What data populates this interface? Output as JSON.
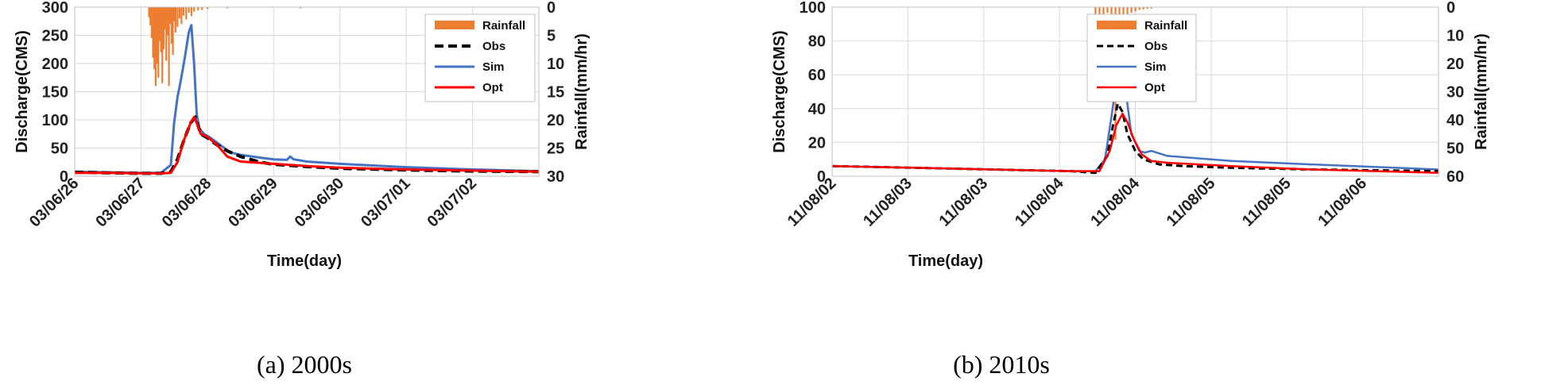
{
  "chart_data": [
    {
      "type": "line",
      "caption": "(a) 2000s",
      "xlabel": "Time(day)",
      "ylabel": "Discharge(CMS)",
      "y2label": "Rainfall(mm/hr)",
      "ylim": [
        0,
        300
      ],
      "yticks": [
        0,
        50,
        100,
        150,
        200,
        250,
        300
      ],
      "y2lim": [
        0,
        30
      ],
      "y2ticks": [
        0,
        5,
        10,
        15,
        20,
        25,
        30
      ],
      "y2_inverted": true,
      "xlim": [
        0,
        7
      ],
      "xtick_labels": [
        "03/06/26",
        "03/06/27",
        "03/06/28",
        "03/06/29",
        "03/06/30",
        "03/07/01",
        "03/07/02"
      ],
      "grid": true,
      "legend_position": "top-right",
      "colors": {
        "rainfall": "#ED7D31",
        "obs": "#000000",
        "sim": "#4472C4",
        "opt": "#FF0000"
      },
      "rainfall": {
        "name": "Rainfall",
        "x": [
          1.12,
          1.14,
          1.16,
          1.18,
          1.2,
          1.22,
          1.24,
          1.26,
          1.28,
          1.3,
          1.32,
          1.34,
          1.36,
          1.38,
          1.4,
          1.42,
          1.44,
          1.46,
          1.48,
          1.5,
          1.52,
          1.55,
          1.58,
          1.61,
          1.64,
          1.68,
          1.72,
          1.76,
          1.8,
          1.86,
          1.92,
          2.0,
          2.3,
          3.4
        ],
        "values": [
          1.8,
          3.2,
          5.5,
          9.0,
          11.0,
          14.0,
          10.0,
          12.5,
          6.0,
          8.0,
          13.5,
          7.5,
          4.0,
          9.5,
          5.0,
          14.0,
          3.0,
          6.5,
          8.5,
          2.5,
          4.5,
          3.5,
          2.0,
          3.0,
          1.5,
          2.2,
          1.0,
          1.6,
          0.8,
          0.6,
          0.5,
          0.3,
          0.2,
          0.2
        ]
      },
      "series": [
        {
          "name": "Obs",
          "style": "dashed",
          "x": [
            0,
            0.5,
            1.0,
            1.3,
            1.45,
            1.55,
            1.65,
            1.75,
            1.82,
            1.9,
            2.0,
            2.15,
            2.3,
            2.5,
            2.8,
            3.0,
            3.5,
            4.0,
            5.0,
            6.0,
            7.0
          ],
          "y": [
            7,
            6,
            5,
            5,
            8,
            30,
            65,
            95,
            105,
            75,
            68,
            55,
            45,
            35,
            25,
            21,
            17,
            14,
            11,
            9,
            8
          ]
        },
        {
          "name": "Sim",
          "style": "solid",
          "x": [
            0,
            0.5,
            1.0,
            1.3,
            1.45,
            1.5,
            1.55,
            1.6,
            1.66,
            1.72,
            1.76,
            1.8,
            1.84,
            1.88,
            1.95,
            2.05,
            2.2,
            2.35,
            2.5,
            2.8,
            3.0,
            3.2,
            3.25,
            3.3,
            3.5,
            4.0,
            5.0,
            6.0,
            7.0
          ],
          "y": [
            8,
            7,
            6,
            6,
            20,
            95,
            140,
            170,
            210,
            255,
            268,
            200,
            110,
            85,
            75,
            68,
            55,
            42,
            38,
            33,
            30,
            29,
            35,
            30,
            26,
            22,
            16,
            12,
            9
          ]
        },
        {
          "name": "Opt",
          "style": "solid",
          "x": [
            0,
            0.5,
            1.0,
            1.3,
            1.45,
            1.55,
            1.65,
            1.75,
            1.8,
            1.84,
            1.9,
            2.0,
            2.15,
            2.3,
            2.5,
            3.0,
            3.5,
            4.0,
            5.0,
            6.0,
            7.0
          ],
          "y": [
            6,
            6,
            5,
            5,
            6,
            25,
            65,
            95,
            105,
            95,
            75,
            70,
            55,
            35,
            26,
            22,
            18,
            15,
            12,
            10,
            8
          ]
        }
      ]
    },
    {
      "type": "line",
      "caption": "(b) 2010s",
      "xlabel": "Time(day)",
      "ylabel": "Discharge(CMS)",
      "y2label": "Rainfall(mm/hr)",
      "ylim": [
        0,
        100
      ],
      "yticks": [
        0,
        20,
        40,
        60,
        80,
        100
      ],
      "y2lim": [
        0,
        60
      ],
      "y2ticks": [
        0,
        10,
        20,
        30,
        40,
        50,
        60
      ],
      "y2_inverted": true,
      "xlim": [
        0,
        7.6
      ],
      "xtick_labels": [
        "11/08/02",
        "11/08/03",
        "11/08/03",
        "11/08/04",
        "11/08/04",
        "11/08/05",
        "11/08/05",
        "11/08/06"
      ],
      "grid": true,
      "legend_position": "top-right",
      "colors": {
        "rainfall": "#ED7D31",
        "obs": "#000000",
        "sim": "#4472C4",
        "opt": "#FF0000"
      },
      "rainfall": {
        "name": "Rainfall",
        "x": [
          3.3,
          3.35,
          3.4,
          3.45,
          3.5,
          3.55,
          3.6,
          3.65,
          3.7,
          3.75,
          3.8,
          3.85,
          3.9,
          3.95,
          4.0
        ],
        "values": [
          15,
          3,
          8,
          2,
          5,
          47,
          3,
          22,
          6,
          2,
          1.5,
          1,
          0.8,
          0.6,
          0.5
        ]
      },
      "series": [
        {
          "name": "Obs",
          "style": "dashed",
          "x": [
            0,
            1.0,
            2.0,
            3.0,
            3.3,
            3.45,
            3.52,
            3.58,
            3.64,
            3.7,
            3.8,
            3.9,
            4.1,
            4.4,
            5.0,
            6.0,
            7.6
          ],
          "y": [
            6,
            5,
            4,
            3,
            2,
            12,
            30,
            43,
            38,
            25,
            15,
            10,
            7,
            6,
            5,
            4,
            3
          ]
        },
        {
          "name": "Sim",
          "style": "solid",
          "x": [
            0,
            1.0,
            2.0,
            3.0,
            3.3,
            3.42,
            3.5,
            3.56,
            3.62,
            3.68,
            3.75,
            3.85,
            3.92,
            4.0,
            4.2,
            5.0,
            6.0,
            7.6
          ],
          "y": [
            6,
            5,
            4,
            3,
            3,
            10,
            35,
            55,
            60,
            50,
            25,
            15,
            14,
            15,
            12,
            9,
            7,
            4
          ]
        },
        {
          "name": "Opt",
          "style": "solid",
          "x": [
            0,
            1.0,
            2.0,
            3.0,
            3.35,
            3.48,
            3.56,
            3.64,
            3.7,
            3.78,
            3.88,
            4.0,
            4.2,
            5.0,
            6.0,
            7.6
          ],
          "y": [
            6,
            5,
            4,
            3,
            3,
            15,
            30,
            37,
            32,
            22,
            13,
            9,
            8,
            6,
            4,
            2
          ]
        }
      ]
    }
  ]
}
